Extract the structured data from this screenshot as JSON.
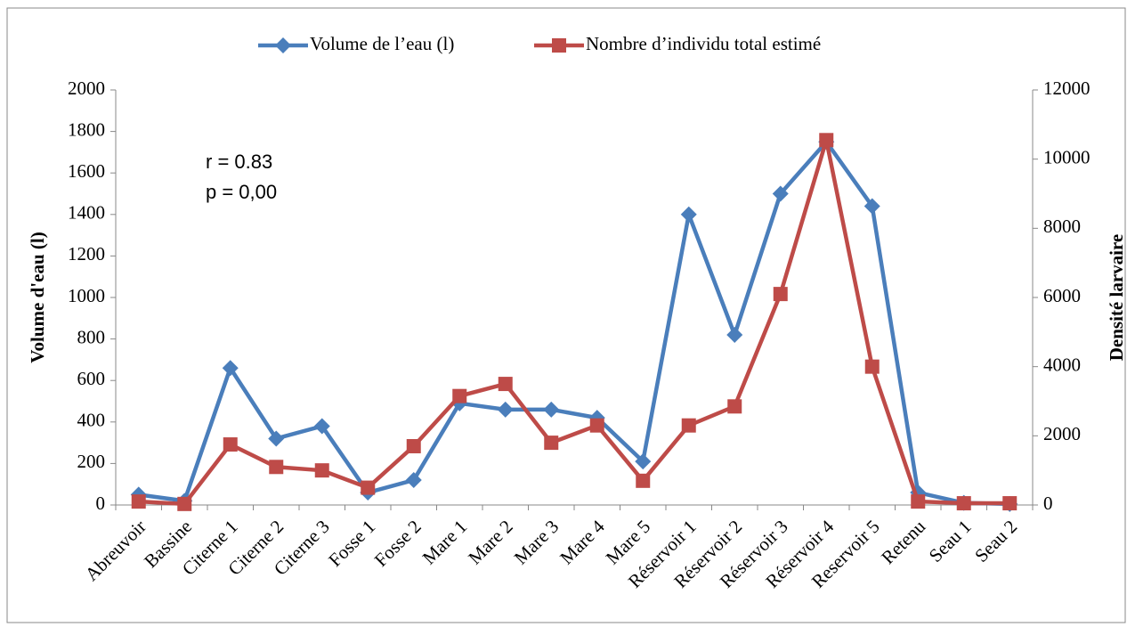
{
  "chart_data": {
    "type": "line",
    "categories": [
      "Abreuvoir",
      "Bassine",
      "Citerne 1",
      "Citerne 2",
      "Citerne 3",
      "Fosse 1",
      "Fosse 2",
      "Mare 1",
      "Mare 2",
      "Mare 3",
      "Mare 4",
      "Mare 5",
      "Réservoir 1",
      "Réservoir 2",
      "Réservoir 3",
      "Réservoir 4",
      "Reservoir 5",
      "Retenu",
      "Seau 1",
      "Seau 2"
    ],
    "series": [
      {
        "name": "Volume de l’eau (l)",
        "color": "#4a7ebb",
        "marker": "diamond",
        "values": [
          50,
          20,
          660,
          320,
          380,
          60,
          120,
          490,
          460,
          460,
          420,
          210,
          1400,
          820,
          1500,
          1750,
          1440,
          60,
          10,
          5
        ]
      },
      {
        "name": "Nombre d’individu total estimé",
        "color": "#be4b48",
        "marker": "square",
        "axis": "y2",
        "values": [
          100,
          30,
          1750,
          1100,
          1000,
          500,
          1700,
          3150,
          3500,
          1800,
          2300,
          700,
          2300,
          2850,
          6100,
          10550,
          4000,
          100,
          50,
          50
        ]
      }
    ],
    "ylabel": "Volume d'eau (l)",
    "y2label": "Densité larvaire",
    "ylim": [
      0,
      2000
    ],
    "yticks": [
      0,
      200,
      400,
      600,
      800,
      1000,
      1200,
      1400,
      1600,
      1800,
      2000
    ],
    "y2lim": [
      0,
      12000
    ],
    "y2ticks": [
      0,
      2000,
      4000,
      6000,
      8000,
      10000,
      12000
    ],
    "annotations": [
      "r = 0.83",
      "p = 0,00"
    ],
    "legend": "top"
  }
}
